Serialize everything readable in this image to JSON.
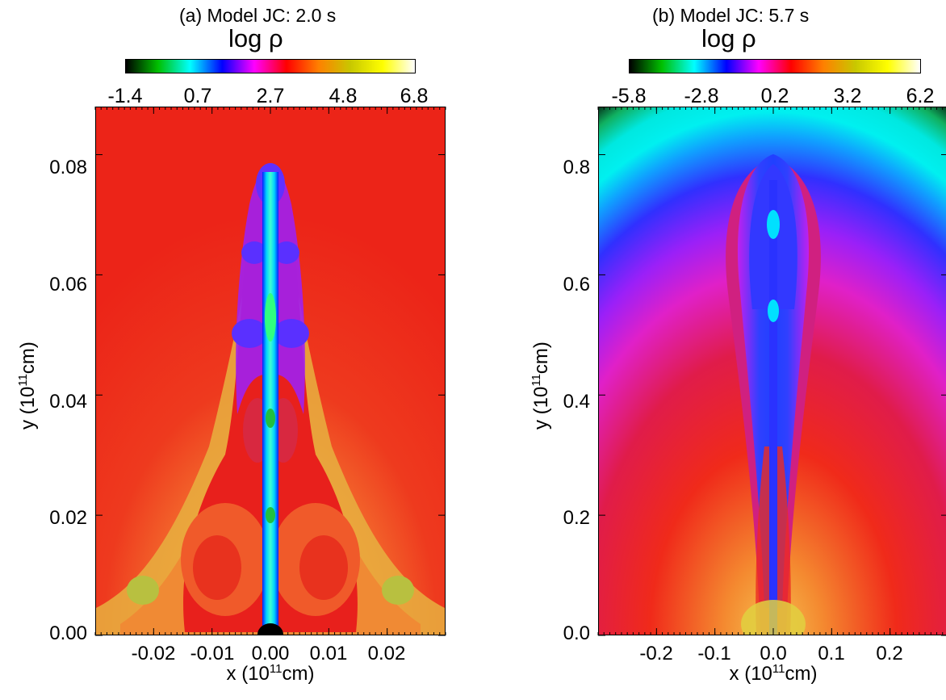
{
  "chart_data": [
    {
      "type": "heatmap",
      "title": "(a) Model JC: 2.0 s",
      "colorbar_label": "log ρ",
      "colorbar_ticks": [
        "-1.4",
        "0.7",
        "2.7",
        "4.8",
        "6.8"
      ],
      "colorbar_range": [
        -1.4,
        6.8
      ],
      "xlabel_prefix": "x (10",
      "xlabel_exp": "11",
      "xlabel_suffix": "cm)",
      "ylabel_prefix": "y (10",
      "ylabel_exp": "11",
      "ylabel_suffix": "cm)",
      "xticks": [
        "-0.02",
        "-0.01",
        "0.00",
        "0.01",
        "0.02"
      ],
      "xtick_values": [
        -0.02,
        -0.01,
        0.0,
        0.01,
        0.02
      ],
      "yticks": [
        "0.00",
        "0.02",
        "0.04",
        "0.06",
        "0.08"
      ],
      "ytick_values": [
        0.0,
        0.02,
        0.04,
        0.06,
        0.08
      ],
      "xlim": [
        -0.03,
        0.03
      ],
      "ylim": [
        0.0,
        0.088
      ]
    },
    {
      "type": "heatmap",
      "title": "(b) Model JC: 5.7 s",
      "colorbar_label": "log ρ",
      "colorbar_ticks": [
        "-5.8",
        "-2.8",
        "0.2",
        "3.2",
        "6.2"
      ],
      "colorbar_range": [
        -5.8,
        6.2
      ],
      "xlabel_prefix": "x (10",
      "xlabel_exp": "11",
      "xlabel_suffix": "cm)",
      "ylabel_prefix": "y (10",
      "ylabel_exp": "11",
      "ylabel_suffix": "cm)",
      "xticks": [
        "-0.2",
        "-0.1",
        "0.0",
        "0.1",
        "0.2"
      ],
      "xtick_values": [
        -0.2,
        -0.1,
        0.0,
        0.1,
        0.2
      ],
      "yticks": [
        "0.0",
        "0.2",
        "0.4",
        "0.6",
        "0.8"
      ],
      "ytick_values": [
        0.0,
        0.2,
        0.4,
        0.6,
        0.8
      ],
      "xlim": [
        -0.3,
        0.3
      ],
      "ylim": [
        0.0,
        0.88
      ]
    }
  ],
  "colors": {
    "colorbar_stops": [
      "#000000",
      "#00c000",
      "#00ffff",
      "#0000ff",
      "#ff00ff",
      "#ff0000",
      "#ff8000",
      "#c8c800",
      "#ffff00",
      "#ffffff"
    ],
    "background_a": "#ee2a1a",
    "background_b_top": "#000000",
    "jet_core": "#00e0ff"
  }
}
